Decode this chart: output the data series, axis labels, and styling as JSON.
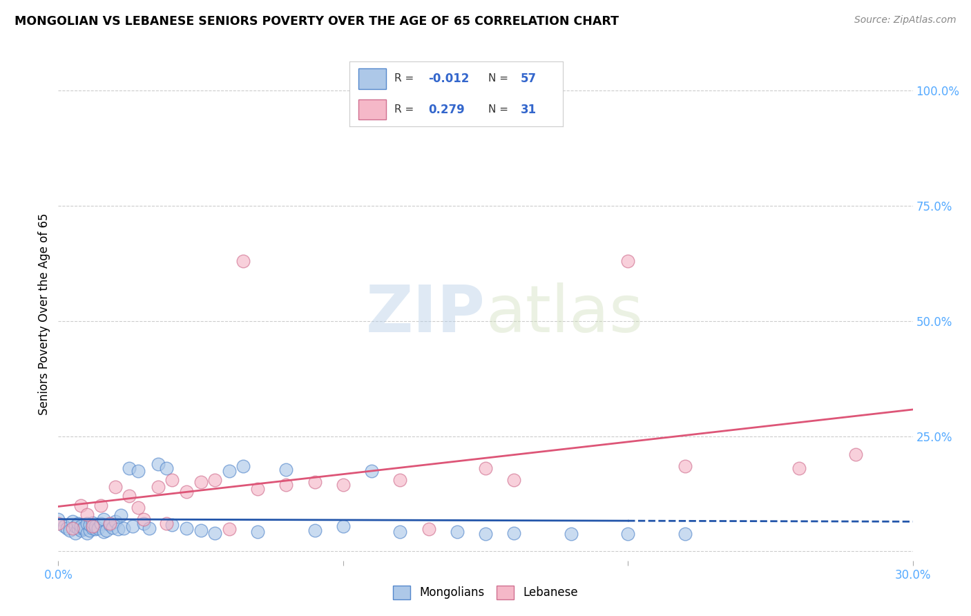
{
  "title": "MONGOLIAN VS LEBANESE SENIORS POVERTY OVER THE AGE OF 65 CORRELATION CHART",
  "source": "Source: ZipAtlas.com",
  "ylabel": "Seniors Poverty Over the Age of 65",
  "xlim": [
    0.0,
    0.3
  ],
  "ylim": [
    -0.02,
    1.05
  ],
  "y_ticks_right": [
    0.0,
    0.25,
    0.5,
    0.75,
    1.0
  ],
  "y_tick_labels_right": [
    "",
    "25.0%",
    "50.0%",
    "75.0%",
    "100.0%"
  ],
  "mongolian_R": -0.012,
  "mongolian_N": 57,
  "lebanese_R": 0.279,
  "lebanese_N": 31,
  "mongolian_color": "#adc8e8",
  "mongolian_edge": "#5588cc",
  "lebanese_color": "#f5b8c8",
  "lebanese_edge": "#d07090",
  "mongolian_line_color": "#2255aa",
  "lebanese_line_color": "#dd5577",
  "grid_color": "#cccccc",
  "watermark_zip": "ZIP",
  "watermark_atlas": "atlas",
  "mongolian_x": [
    0.0,
    0.002,
    0.003,
    0.004,
    0.005,
    0.006,
    0.006,
    0.007,
    0.007,
    0.008,
    0.008,
    0.009,
    0.009,
    0.01,
    0.01,
    0.011,
    0.011,
    0.012,
    0.012,
    0.013,
    0.013,
    0.014,
    0.015,
    0.016,
    0.016,
    0.017,
    0.018,
    0.019,
    0.02,
    0.021,
    0.022,
    0.023,
    0.025,
    0.026,
    0.028,
    0.03,
    0.032,
    0.035,
    0.038,
    0.04,
    0.045,
    0.05,
    0.055,
    0.06,
    0.065,
    0.07,
    0.08,
    0.09,
    0.1,
    0.11,
    0.12,
    0.14,
    0.15,
    0.16,
    0.18,
    0.2,
    0.22
  ],
  "mongolian_y": [
    0.07,
    0.055,
    0.05,
    0.045,
    0.065,
    0.04,
    0.055,
    0.05,
    0.06,
    0.045,
    0.055,
    0.048,
    0.052,
    0.04,
    0.06,
    0.045,
    0.058,
    0.05,
    0.062,
    0.048,
    0.055,
    0.05,
    0.06,
    0.07,
    0.042,
    0.045,
    0.058,
    0.052,
    0.065,
    0.048,
    0.078,
    0.05,
    0.18,
    0.055,
    0.175,
    0.06,
    0.05,
    0.19,
    0.18,
    0.058,
    0.05,
    0.045,
    0.04,
    0.175,
    0.185,
    0.042,
    0.178,
    0.045,
    0.055,
    0.175,
    0.042,
    0.042,
    0.038,
    0.04,
    0.038,
    0.038,
    0.038
  ],
  "lebanese_x": [
    0.0,
    0.005,
    0.008,
    0.01,
    0.012,
    0.015,
    0.018,
    0.02,
    0.025,
    0.028,
    0.03,
    0.035,
    0.038,
    0.04,
    0.045,
    0.05,
    0.055,
    0.06,
    0.065,
    0.07,
    0.08,
    0.09,
    0.1,
    0.12,
    0.13,
    0.15,
    0.16,
    0.2,
    0.22,
    0.26,
    0.28
  ],
  "lebanese_y": [
    0.06,
    0.05,
    0.1,
    0.08,
    0.055,
    0.1,
    0.06,
    0.14,
    0.12,
    0.095,
    0.07,
    0.14,
    0.06,
    0.155,
    0.13,
    0.15,
    0.155,
    0.048,
    0.63,
    0.135,
    0.145,
    0.15,
    0.145,
    0.155,
    0.048,
    0.18,
    0.155,
    0.63,
    0.185,
    0.18,
    0.21
  ]
}
